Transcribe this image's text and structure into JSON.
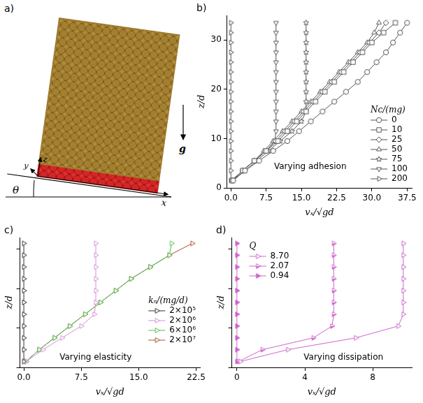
{
  "diagram": {
    "label": "a)",
    "axis_labels": [
      "x",
      "y",
      "z"
    ],
    "angle": "θ",
    "gravity": "g"
  },
  "chart_data": [
    {
      "label": "b)",
      "type": "line",
      "annotation": "Varying adhesion",
      "x_label": "vₓ/√gd",
      "y_label": "z/d",
      "legend": "lower right",
      "legend_title": "Nc/(mg)",
      "grid": false,
      "xlim": [
        -0.8,
        38.5
      ],
      "xticks": [
        {
          "value": 0,
          "label": "0.0"
        },
        7.5,
        {
          "value": 15,
          "label": "15.0"
        },
        22.5,
        {
          "value": 30,
          "label": "30.0"
        },
        37.5
      ],
      "ylim": [
        0,
        35
      ],
      "yticks": [
        0,
        10,
        20,
        30
      ],
      "series": [
        {
          "name": "0",
          "color": "#555555",
          "marker": "circle-open",
          "x": [
            0.5,
            3,
            6,
            9,
            12,
            14.5,
            17,
            19.5,
            22,
            24.5,
            27,
            29,
            31,
            33,
            34.5,
            36,
            37.5
          ],
          "y": [
            1.5,
            3.5,
            5.5,
            7.5,
            9.5,
            11.5,
            13.5,
            15.5,
            17.5,
            19.5,
            21.5,
            23.5,
            25.5,
            27.5,
            29.5,
            31.5,
            33.5
          ]
        },
        {
          "name": "10",
          "color": "#555555",
          "marker": "square-open",
          "x": [
            0.3,
            2.5,
            5,
            7.5,
            10,
            12,
            14,
            16,
            18,
            20,
            22,
            24,
            26,
            28,
            30,
            32.5,
            35
          ],
          "y": [
            1.5,
            3.5,
            5.5,
            7.5,
            9.5,
            11.5,
            13.5,
            15.5,
            17.5,
            19.5,
            21.5,
            23.5,
            25.5,
            27.5,
            29.5,
            31.5,
            33.5
          ]
        },
        {
          "name": "25",
          "color": "#555555",
          "marker": "diamond-open",
          "x": [
            0.3,
            2.5,
            5,
            7.5,
            9.5,
            11.5,
            13.5,
            15.5,
            17.5,
            19.5,
            21.5,
            23.5,
            25.5,
            27.5,
            29.5,
            31.5,
            33
          ],
          "y": [
            1.5,
            3.5,
            5.5,
            7.5,
            9.5,
            11.5,
            13.5,
            15.5,
            17.5,
            19.5,
            21.5,
            23.5,
            25.5,
            27.5,
            29.5,
            31.5,
            33.5
          ]
        },
        {
          "name": "50",
          "color": "#555555",
          "marker": "triangle-open",
          "x": [
            0.2,
            2.5,
            5,
            7,
            9,
            11,
            13,
            15,
            17,
            19,
            21,
            23,
            25,
            27,
            29,
            30.5,
            31.5
          ],
          "y": [
            1.5,
            3.5,
            5.5,
            7.5,
            9.5,
            11.5,
            13.5,
            15.5,
            17.5,
            19.5,
            21.5,
            23.5,
            25.5,
            27.5,
            29.5,
            31.5,
            33.5
          ]
        },
        {
          "name": "75",
          "color": "#555555",
          "marker": "star-open",
          "x": [
            0.3,
            3,
            5.5,
            8,
            10.5,
            13,
            15,
            16,
            16,
            16,
            16,
            16,
            16,
            16,
            16,
            16,
            16
          ],
          "y": [
            1.5,
            3.5,
            5.5,
            7.5,
            9.5,
            11.5,
            13.5,
            15.5,
            17.5,
            19.5,
            21.5,
            23.5,
            25.5,
            27.5,
            29.5,
            31.5,
            33.5
          ]
        },
        {
          "name": "100",
          "color": "#555555",
          "marker": "triangle-down-open",
          "x": [
            0.2,
            2.5,
            5,
            7.5,
            9.3,
            9.6,
            9.6,
            9.6,
            9.6,
            9.6,
            9.6,
            9.6,
            9.6,
            9.6,
            9.6,
            9.6,
            9.6
          ],
          "y": [
            1.5,
            3.5,
            5.5,
            7.5,
            9.5,
            11.5,
            13.5,
            15.5,
            17.5,
            19.5,
            21.5,
            23.5,
            25.5,
            27.5,
            29.5,
            31.5,
            33.5
          ]
        },
        {
          "name": "200",
          "color": "#555555",
          "marker": "triangle-right-open",
          "x": [
            0,
            0,
            0,
            0,
            0,
            0,
            0,
            0,
            0,
            0,
            0,
            0,
            0,
            0,
            0,
            0,
            0
          ],
          "y": [
            1.5,
            3.5,
            5.5,
            7.5,
            9.5,
            11.5,
            13.5,
            15.5,
            17.5,
            19.5,
            21.5,
            23.5,
            25.5,
            27.5,
            29.5,
            31.5,
            33.5
          ]
        }
      ]
    },
    {
      "label": "c)",
      "type": "line",
      "annotation": "Varying elasticity",
      "x_label": "vₓ/√gd",
      "y_label": "z/d",
      "legend": "lower right",
      "legend_title": "kₙ/(mg/d)",
      "grid": false,
      "tick_labels": "x",
      "xlim": [
        -0.5,
        23
      ],
      "xticks": [
        {
          "value": 0,
          "label": "0.0"
        },
        7.5,
        {
          "value": 15,
          "label": "15.0"
        },
        22.5
      ],
      "ylim": [
        0,
        33
      ],
      "yticks": [
        0,
        10,
        20,
        30
      ],
      "series": [
        {
          "name": "2×10⁵",
          "color": "#333333",
          "marker": "triangle-right-open",
          "x": [
            0,
            0,
            0,
            0,
            0,
            0,
            0,
            0,
            0,
            0,
            0
          ],
          "y": [
            1.5,
            4.5,
            7.5,
            10.5,
            13.5,
            16.5,
            19.5,
            22.5,
            25.5,
            28.5,
            31.5
          ]
        },
        {
          "name": "2×10⁶",
          "color": "#d68fd6",
          "marker": "triangle-right-open",
          "x": [
            0.3,
            2.5,
            5,
            7.5,
            9.2,
            9.4,
            9.4,
            9.4,
            9.4,
            9.4,
            9.4
          ],
          "y": [
            1.5,
            4.5,
            7.5,
            10.5,
            13.5,
            16.5,
            19.5,
            22.5,
            25.5,
            28.5,
            31.5
          ]
        },
        {
          "name": "6×10⁶",
          "color": "#4cbf4c",
          "marker": "triangle-right-open",
          "x": [
            0.3,
            2,
            4,
            6,
            8,
            10,
            12,
            14,
            16.5,
            19,
            19.3
          ],
          "y": [
            1.5,
            4.5,
            7.5,
            10.5,
            13.5,
            16.5,
            19.5,
            22.5,
            25.5,
            28.5,
            31.5
          ]
        },
        {
          "name": "2×10⁷",
          "color": "#a0522d",
          "marker": "triangle-right-open",
          "x": [
            0.3,
            2,
            4,
            6,
            8,
            10,
            12,
            14,
            16.5,
            19,
            22
          ],
          "y": [
            1.5,
            4.5,
            7.5,
            10.5,
            13.5,
            16.5,
            19.5,
            22.5,
            25.5,
            28.5,
            31.5
          ]
        }
      ]
    },
    {
      "label": "d)",
      "type": "line",
      "annotation": "Varying dissipation",
      "x_label": "vₓ/√gd",
      "y_label": "z/d",
      "legend": "upper left",
      "legend_title": "Q",
      "grid": false,
      "tick_labels": "x",
      "xlim": [
        -0.3,
        10.3
      ],
      "xticks": [
        0,
        4,
        8
      ],
      "ylim": [
        0,
        33
      ],
      "yticks": [
        0,
        10,
        20,
        30
      ],
      "series": [
        {
          "name": "8.70",
          "color": "#cc66cc",
          "marker": "triangle-right-open",
          "x": [
            0.2,
            3,
            7,
            9.5,
            9.8,
            9.8,
            9.8,
            9.8,
            9.8,
            9.8,
            9.8
          ],
          "y": [
            1.5,
            4.5,
            7.5,
            10.5,
            13.5,
            16.5,
            19.5,
            22.5,
            25.5,
            28.5,
            31.5
          ]
        },
        {
          "name": "2.07",
          "color": "#cc66cc",
          "marker": "triangle-right-half",
          "x": [
            0.1,
            1.5,
            4.5,
            5.6,
            5.7,
            5.7,
            5.7,
            5.7,
            5.7,
            5.7,
            5.7
          ],
          "y": [
            1.5,
            4.5,
            7.5,
            10.5,
            13.5,
            16.5,
            19.5,
            22.5,
            25.5,
            28.5,
            31.5
          ]
        },
        {
          "name": "0.94",
          "color": "#cc66cc",
          "marker": "triangle-right",
          "x": [
            0,
            0,
            0,
            0,
            0,
            0,
            0,
            0,
            0,
            0,
            0
          ],
          "y": [
            1.5,
            4.5,
            7.5,
            10.5,
            13.5,
            16.5,
            19.5,
            22.5,
            25.5,
            28.5,
            31.5
          ]
        }
      ]
    }
  ]
}
